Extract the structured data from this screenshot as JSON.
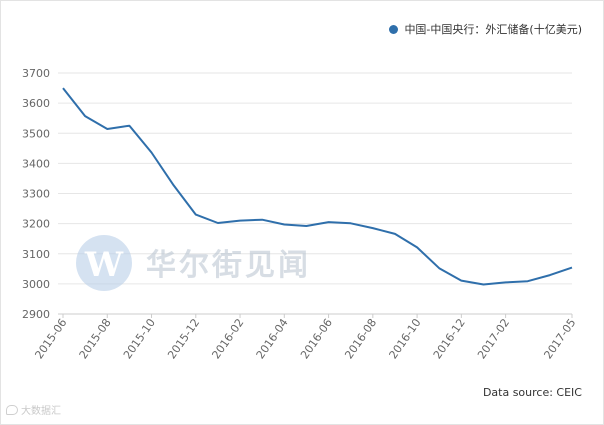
{
  "chart_data": {
    "type": "line",
    "x": [
      "2015-06",
      "2015-07",
      "2015-08",
      "2015-09",
      "2015-10",
      "2015-11",
      "2015-12",
      "2016-01",
      "2016-02",
      "2016-03",
      "2016-04",
      "2016-05",
      "2016-06",
      "2016-07",
      "2016-08",
      "2016-09",
      "2016-10",
      "2016-11",
      "2016-12",
      "2017-01",
      "2017-02",
      "2017-03",
      "2017-04",
      "2017-05"
    ],
    "x_tick_labels": [
      "2015-06",
      "2015-08",
      "2015-10",
      "2015-12",
      "2016-02",
      "2016-04",
      "2016-06",
      "2016-08",
      "2016-10",
      "2016-12",
      "2017-02",
      "2017-05"
    ],
    "series": [
      {
        "name": "中国-中国央行：外汇储备(十亿美元)",
        "values": [
          3650,
          3557,
          3514,
          3525,
          3436,
          3327,
          3230,
          3202,
          3210,
          3213,
          3197,
          3192,
          3205,
          3201,
          3185,
          3166,
          3121,
          3052,
          3011,
          2998,
          3005,
          3009,
          3029,
          3054
        ],
        "color": "#2f6fab"
      }
    ],
    "ylim": [
      2900,
      3700
    ],
    "yticks": [
      2900,
      3000,
      3100,
      3200,
      3300,
      3400,
      3500,
      3600,
      3700
    ],
    "grid": true,
    "legend_position": "top-right"
  },
  "source_text": "Data source: CEIC",
  "watermark": {
    "logo_letter": "W",
    "text": "华尔街见闻"
  },
  "credit_text": "大数据汇"
}
